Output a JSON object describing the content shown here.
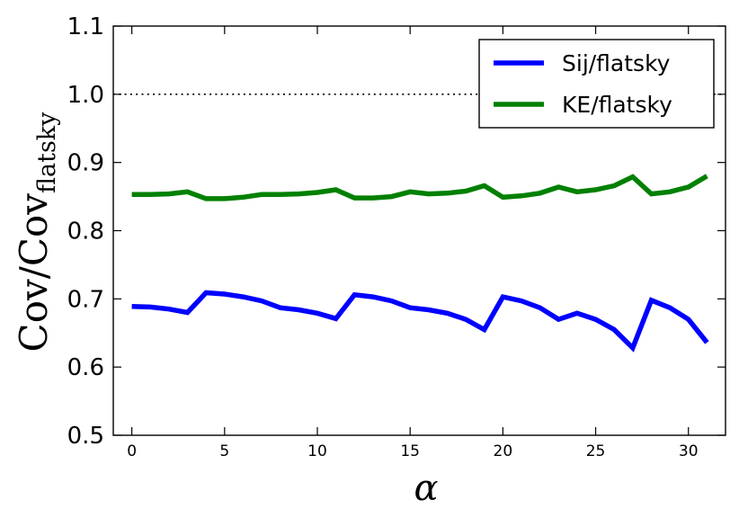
{
  "chart_data": {
    "type": "line",
    "xlabel": "α",
    "ylabel": {
      "main": "Cov/Cov",
      "subscript": "flatsky"
    },
    "xlim": [
      -1,
      32
    ],
    "ylim": [
      0.5,
      1.1
    ],
    "xticks": [
      0,
      5,
      10,
      15,
      20,
      25,
      30
    ],
    "yticks": [
      "0.5",
      "0.6",
      "0.7",
      "0.8",
      "0.9",
      "1.0",
      "1.1"
    ],
    "grid": false,
    "legend_position": "top-right",
    "reference_line": {
      "y": 1.0,
      "style": "dotted"
    },
    "x": [
      0,
      1,
      2,
      3,
      4,
      5,
      6,
      7,
      8,
      9,
      10,
      11,
      12,
      13,
      14,
      15,
      16,
      17,
      18,
      19,
      20,
      21,
      22,
      23,
      24,
      25,
      26,
      27,
      28,
      29,
      30,
      31
    ],
    "series": [
      {
        "name": "Sij/flatsky",
        "color": "#0000ff",
        "values": [
          0.689,
          0.688,
          0.685,
          0.68,
          0.709,
          0.707,
          0.703,
          0.697,
          0.687,
          0.684,
          0.679,
          0.671,
          0.706,
          0.703,
          0.697,
          0.687,
          0.684,
          0.679,
          0.67,
          0.655,
          0.703,
          0.697,
          0.687,
          0.67,
          0.679,
          0.67,
          0.655,
          0.628,
          0.698,
          0.687,
          0.67,
          0.636
        ]
      },
      {
        "name": "KE/flatsky",
        "color": "#008000",
        "values": [
          0.853,
          0.853,
          0.854,
          0.857,
          0.847,
          0.847,
          0.849,
          0.853,
          0.853,
          0.854,
          0.856,
          0.86,
          0.848,
          0.848,
          0.85,
          0.857,
          0.854,
          0.855,
          0.858,
          0.866,
          0.849,
          0.851,
          0.855,
          0.864,
          0.857,
          0.86,
          0.866,
          0.879,
          0.854,
          0.857,
          0.864,
          0.88
        ]
      }
    ]
  }
}
